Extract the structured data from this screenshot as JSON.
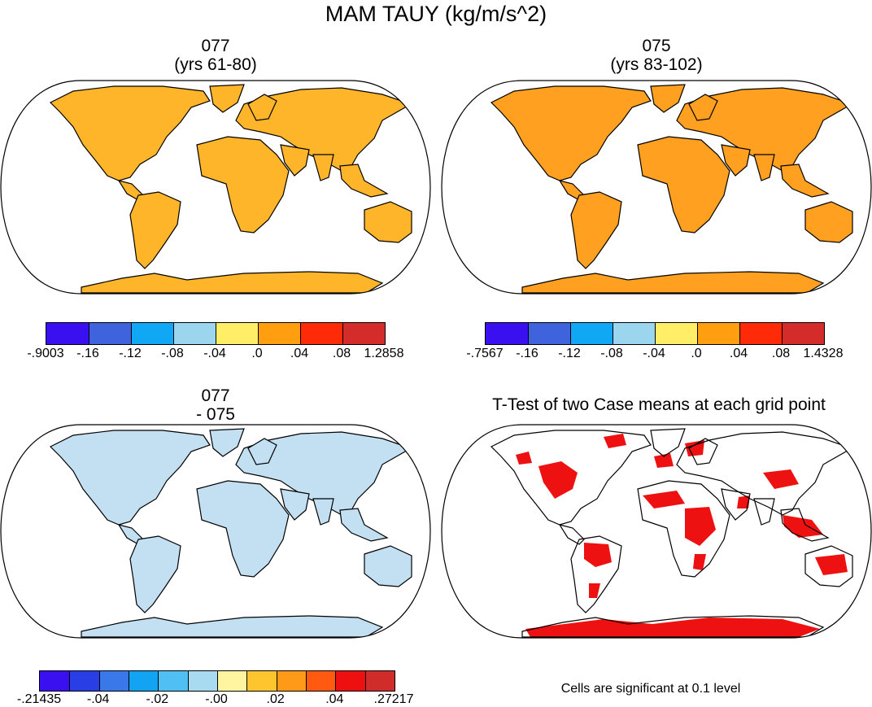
{
  "figure": {
    "title": "MAM TAUY (kg/m/s^2)"
  },
  "panels": [
    {
      "line1": "077",
      "line2": "(yrs 61-80)"
    },
    {
      "line1": "075",
      "line2": "(yrs 83-102)"
    },
    {
      "line1": "077",
      "line2": "- 075"
    },
    {
      "line1": "T-Test of two Case means at each grid point"
    }
  ],
  "colorbars": [
    {
      "colors": [
        "#3a10f0",
        "#3e63dd",
        "#10a8f5",
        "#9cd6ee",
        "#ffee66",
        "#ff9f10",
        "#ff2a08",
        "#d42c2a"
      ],
      "labels": [
        "-.9003",
        "-.16",
        "-.12",
        "-.08",
        "-.04",
        ".0",
        ".04",
        ".08",
        "1.2858"
      ]
    },
    {
      "colors": [
        "#3a10f0",
        "#3e63dd",
        "#10a8f5",
        "#9cd6ee",
        "#ffee66",
        "#ff9f10",
        "#ff2a08",
        "#d42c2a"
      ],
      "labels": [
        "-.7567",
        "-.16",
        "-.12",
        "-.08",
        "-.04",
        ".0",
        ".04",
        ".08",
        "1.4328"
      ]
    },
    {
      "colors": [
        "#3a10f0",
        "#2a3ee6",
        "#3a78ea",
        "#12a4f2",
        "#50c0f4",
        "#a8daf0",
        "#fff5a0",
        "#ffc52e",
        "#ff9a18",
        "#ff5a10",
        "#ee1010",
        "#d02c2a"
      ],
      "labels": [
        "-.21435",
        "-.04",
        "-.02",
        "-.00",
        ".02",
        ".04",
        ".27217"
      ],
      "label_slots": [
        0,
        2,
        4,
        6,
        8,
        10,
        12
      ]
    }
  ],
  "significance": {
    "color": "#ee1111",
    "note": "Cells are significant at 0.1 level"
  },
  "map_fills": {
    "mean_077": "#ffb52a",
    "mean_075": "#ffa020",
    "difference": "#c3dff2"
  }
}
